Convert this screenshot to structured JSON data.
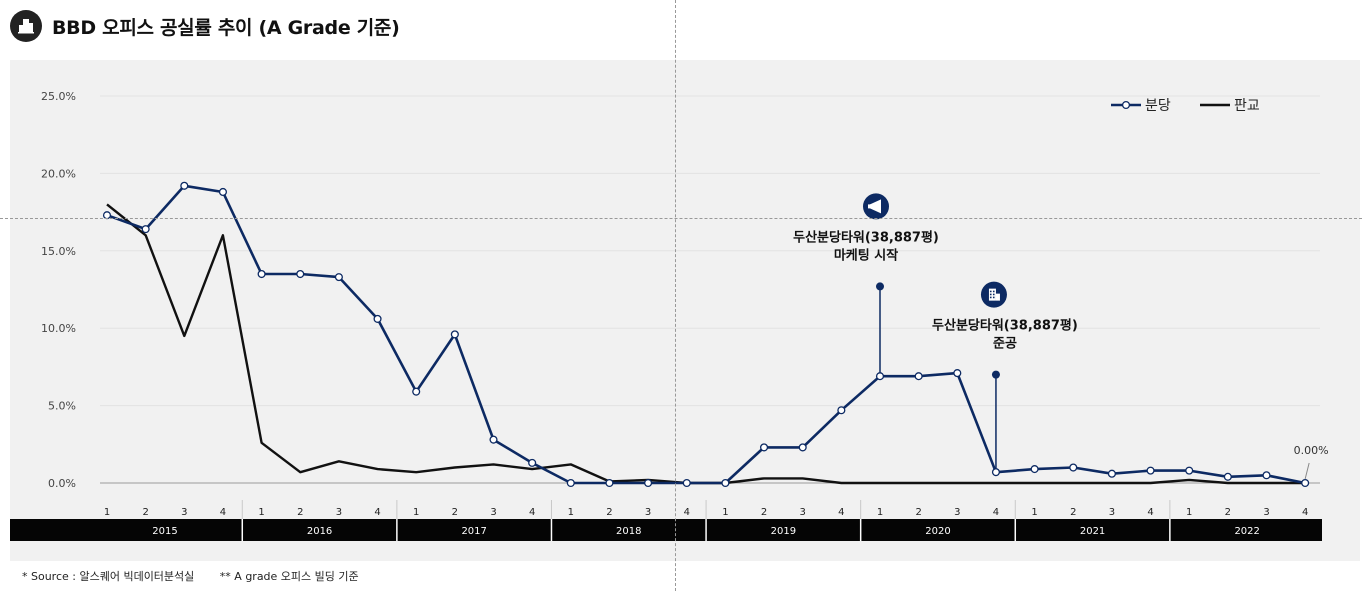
{
  "page": {
    "title": "BBD 오피스 공실률 추이 (A Grade 기준)",
    "title_icon": "building-icon"
  },
  "footnote": {
    "source": "* Source : 알스퀘어 빅데이터분석실",
    "note": "** A grade 오피스 빌딩 기준"
  },
  "chart_data": {
    "type": "line",
    "categories": [
      "1",
      "2",
      "3",
      "4",
      "1",
      "2",
      "3",
      "4",
      "1",
      "2",
      "3",
      "4",
      "1",
      "2",
      "3",
      "4",
      "1",
      "2",
      "3",
      "4",
      "1",
      "2",
      "3",
      "4",
      "1",
      "2",
      "3",
      "4",
      "1",
      "2",
      "3",
      "4"
    ],
    "years": [
      "2015",
      "2016",
      "2017",
      "2018",
      "2019",
      "2020",
      "2021",
      "2022"
    ],
    "ylim": [
      0,
      25
    ],
    "yticks": [
      "0.0%",
      "5.0%",
      "10.0%",
      "15.0%",
      "20.0%",
      "25.0%"
    ],
    "grid": true,
    "legend_position": "top-right",
    "series": [
      {
        "name": "분당",
        "color": "#0d2a63",
        "markers": true,
        "values": [
          17.3,
          16.4,
          19.2,
          18.8,
          13.5,
          13.5,
          13.3,
          10.6,
          5.9,
          9.6,
          2.8,
          1.3,
          0.0,
          0.0,
          0.0,
          0.0,
          0.0,
          2.3,
          2.3,
          4.7,
          6.9,
          6.9,
          7.1,
          0.7,
          0.9,
          1.0,
          0.6,
          0.8,
          0.8,
          0.4,
          0.5,
          0.0
        ]
      },
      {
        "name": "판교",
        "color": "#111111",
        "markers": false,
        "values": [
          18.0,
          16.0,
          9.5,
          16.0,
          2.6,
          0.7,
          1.4,
          0.9,
          0.7,
          1.0,
          1.2,
          0.9,
          1.2,
          0.1,
          0.2,
          0.0,
          0.0,
          0.3,
          0.3,
          0.0,
          0.0,
          0.0,
          0.0,
          0.0,
          0.0,
          0.0,
          0.0,
          0.0,
          0.2,
          0.0,
          0.0,
          0.0
        ]
      }
    ],
    "end_label": "0.00%",
    "annotations": [
      {
        "index": 20,
        "value": 12.7,
        "line1": "두산분당타워(38,887평)",
        "line2": "마케팅 시작",
        "icon": "megaphone-icon"
      },
      {
        "index": 23,
        "value": 7.0,
        "line1": "두산분당타워(38,887평)",
        "line2": "준공",
        "icon": "building-icon"
      }
    ]
  }
}
